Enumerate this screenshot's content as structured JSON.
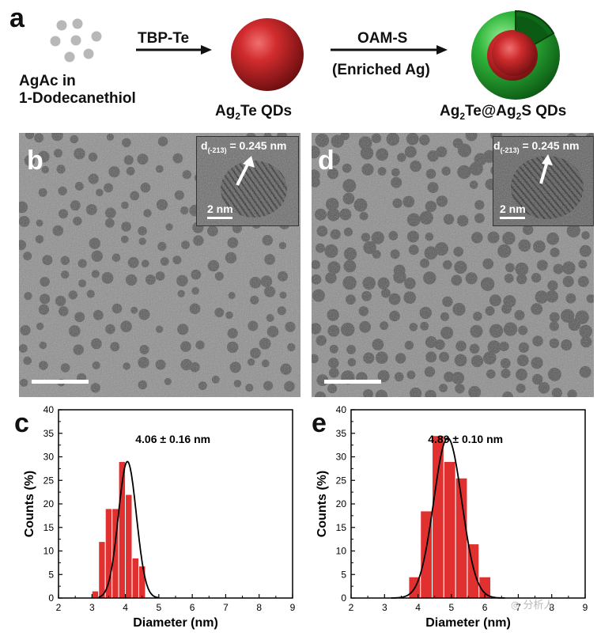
{
  "panel_a": {
    "letter": "a",
    "reactant_line1": "AgAc in",
    "reactant_line2": "1-Dodecanethiol",
    "step1_reagent": "TBP-Te",
    "product1_main": "Ag",
    "product1_sub": "2",
    "product1_rest": "Te QDs",
    "step2_reagent": "OAM-S",
    "step2_condition": "(Enriched Ag)",
    "product2_p1": "Ag",
    "product2_s1": "2",
    "product2_p2": "Te@Ag",
    "product2_s2": "2",
    "product2_p3": "S QDs",
    "colors": {
      "dots": "#b8b8b8",
      "core": "#c0282a",
      "shell": "#2fb53a",
      "arrow": "#111111"
    }
  },
  "panel_b": {
    "letter": "b",
    "inset_d_main": "d",
    "inset_d_sub": "(-213)",
    "inset_d_value": " = 0.245 nm",
    "inset_scale": "2 nm"
  },
  "panel_d": {
    "letter": "d",
    "inset_d_main": "d",
    "inset_d_sub": "(-213)",
    "inset_d_value": " = 0.245 nm",
    "inset_scale": "2 nm"
  },
  "watermark": "分析人",
  "chart_data": [
    {
      "type": "bar",
      "panel": "c",
      "annotation": "4.06 ± 0.16 nm",
      "xlabel": "Diameter (nm)",
      "ylabel": "Counts (%)",
      "xlim": [
        2,
        9
      ],
      "ylim": [
        0,
        40
      ],
      "xticks": [
        2,
        3,
        4,
        5,
        6,
        7,
        8,
        9
      ],
      "yticks": [
        0,
        5,
        10,
        15,
        20,
        25,
        30,
        35,
        40
      ],
      "bin_width": 0.2,
      "bin_centers": [
        3.1,
        3.3,
        3.5,
        3.7,
        3.9,
        4.1,
        4.3,
        4.5,
        4.7,
        4.9
      ],
      "values": [
        1.5,
        12,
        19,
        19,
        29,
        22,
        8.5,
        6.8,
        0,
        0
      ],
      "fit": {
        "type": "gaussian",
        "center": 4.06,
        "amplitude": 29,
        "sigma": 0.27,
        "x_range": [
          3.2,
          5.0
        ]
      },
      "bar_color": "#e03030"
    },
    {
      "type": "bar",
      "panel": "e",
      "annotation": "4.89 ± 0.10 nm",
      "xlabel": "Diameter (nm)",
      "ylabel": "Counts (%)",
      "xlim": [
        2,
        9
      ],
      "ylim": [
        0,
        40
      ],
      "xticks": [
        2,
        3,
        4,
        5,
        6,
        7,
        8,
        9
      ],
      "yticks": [
        0,
        5,
        10,
        15,
        20,
        25,
        30,
        35,
        40
      ],
      "bin_width": 0.35,
      "bin_centers": [
        3.9,
        4.25,
        4.6,
        4.95,
        5.3,
        5.65,
        6.0
      ],
      "values": [
        4.5,
        18.5,
        34.5,
        29,
        25.5,
        11.5,
        4.5
      ],
      "fit": {
        "type": "gaussian",
        "center": 4.89,
        "amplitude": 34,
        "sigma": 0.42,
        "x_range": [
          3.2,
          6.6
        ]
      },
      "bar_color": "#e03030"
    }
  ]
}
